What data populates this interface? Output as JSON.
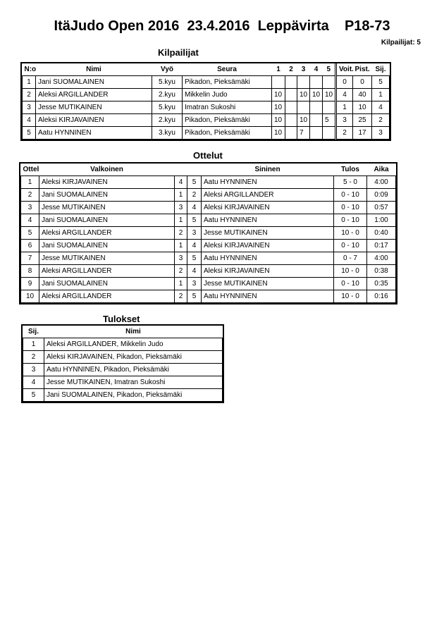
{
  "title": "ItäJudo Open 2016  23.4.2016  Leppävirta    P18-73",
  "competitor_count": "Kilpailijat: 5",
  "competitors": {
    "heading": "Kilpailijat",
    "headers": [
      "N:o",
      "Nimi",
      "Vyö",
      "Seura",
      "1",
      "2",
      "3",
      "4",
      "5",
      "Voit.",
      "Pist.",
      "Sij."
    ],
    "rows": [
      [
        "1",
        "Jani SUOMALAINEN",
        "5.kyu",
        "Pikadon, Pieksämäki",
        "",
        "",
        "",
        "",
        "",
        "0",
        "0",
        "5"
      ],
      [
        "2",
        "Aleksi ARGILLANDER",
        "2.kyu",
        "Mikkelin Judo",
        "10",
        "",
        "10",
        "10",
        "10",
        "4",
        "40",
        "1"
      ],
      [
        "3",
        "Jesse MUTIKAINEN",
        "5.kyu",
        "Imatran Sukoshi",
        "10",
        "",
        "",
        "",
        "",
        "1",
        "10",
        "4"
      ],
      [
        "4",
        "Aleksi KIRJAVAINEN",
        "2.kyu",
        "Pikadon, Pieksämäki",
        "10",
        "",
        "10",
        "",
        "5",
        "3",
        "25",
        "2"
      ],
      [
        "5",
        "Aatu HYNNINEN",
        "3.kyu",
        "Pikadon, Pieksämäki",
        "10",
        "",
        "7",
        "",
        "",
        "2",
        "17",
        "3"
      ]
    ]
  },
  "matches": {
    "heading": "Ottelut",
    "headers": [
      "Ottelu",
      "Valkoinen",
      "",
      "",
      "Sininen",
      "Tulos",
      "Aika"
    ],
    "rows": [
      [
        "1",
        "Aleksi KIRJAVAINEN",
        "4",
        "5",
        "Aatu HYNNINEN",
        "5 - 0",
        "4:00"
      ],
      [
        "2",
        "Jani SUOMALAINEN",
        "1",
        "2",
        "Aleksi ARGILLANDER",
        "0 - 10",
        "0:09"
      ],
      [
        "3",
        "Jesse MUTIKAINEN",
        "3",
        "4",
        "Aleksi KIRJAVAINEN",
        "0 - 10",
        "0:57"
      ],
      [
        "4",
        "Jani SUOMALAINEN",
        "1",
        "5",
        "Aatu HYNNINEN",
        "0 - 10",
        "1:00"
      ],
      [
        "5",
        "Aleksi ARGILLANDER",
        "2",
        "3",
        "Jesse MUTIKAINEN",
        "10 - 0",
        "0:40"
      ],
      [
        "6",
        "Jani SUOMALAINEN",
        "1",
        "4",
        "Aleksi KIRJAVAINEN",
        "0 - 10",
        "0:17"
      ],
      [
        "7",
        "Jesse MUTIKAINEN",
        "3",
        "5",
        "Aatu HYNNINEN",
        "0 - 7",
        "4:00"
      ],
      [
        "8",
        "Aleksi ARGILLANDER",
        "2",
        "4",
        "Aleksi KIRJAVAINEN",
        "10 - 0",
        "0:38"
      ],
      [
        "9",
        "Jani SUOMALAINEN",
        "1",
        "3",
        "Jesse MUTIKAINEN",
        "0 - 10",
        "0:35"
      ],
      [
        "10",
        "Aleksi ARGILLANDER",
        "2",
        "5",
        "Aatu HYNNINEN",
        "10 - 0",
        "0:16"
      ]
    ]
  },
  "results": {
    "heading": "Tulokset",
    "headers": [
      "Sij.",
      "Nimi"
    ],
    "rows": [
      [
        "1",
        "Aleksi ARGILLANDER, Mikkelin Judo"
      ],
      [
        "2",
        "Aleksi KIRJAVAINEN, Pikadon, Pieksämäki"
      ],
      [
        "3",
        "Aatu HYNNINEN, Pikadon, Pieksämäki"
      ],
      [
        "4",
        "Jesse MUTIKAINEN, Imatran Sukoshi"
      ],
      [
        "5",
        "Jani SUOMALAINEN, Pikadon, Pieksämäki"
      ]
    ]
  }
}
